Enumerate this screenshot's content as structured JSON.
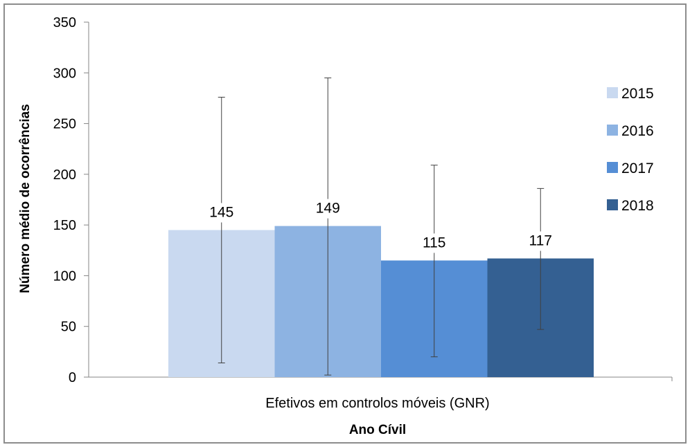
{
  "chart_data": {
    "type": "bar",
    "categories": [
      "Efetivos em controlos móveis (GNR)"
    ],
    "series": [
      {
        "name": "2015",
        "values": [
          145
        ],
        "error": [
          [
            14,
            276
          ]
        ],
        "color": "#c9d9f0"
      },
      {
        "name": "2016",
        "values": [
          149
        ],
        "error": [
          [
            2,
            295
          ]
        ],
        "color": "#8db3e2"
      },
      {
        "name": "2017",
        "values": [
          115
        ],
        "error": [
          [
            20,
            209
          ]
        ],
        "color": "#558ed5"
      },
      {
        "name": "2018",
        "values": [
          117
        ],
        "error": [
          [
            47,
            186
          ]
        ],
        "color": "#346092"
      }
    ],
    "data_labels": [
      "145",
      "149",
      "115",
      "117"
    ],
    "xlabel": "Ano Cívil",
    "ylabel": "Número médio de ocorrências",
    "ylim": [
      0,
      350
    ],
    "yticks": [
      0,
      50,
      100,
      150,
      200,
      250,
      300,
      350
    ],
    "grid": false,
    "legend_position": "right"
  }
}
